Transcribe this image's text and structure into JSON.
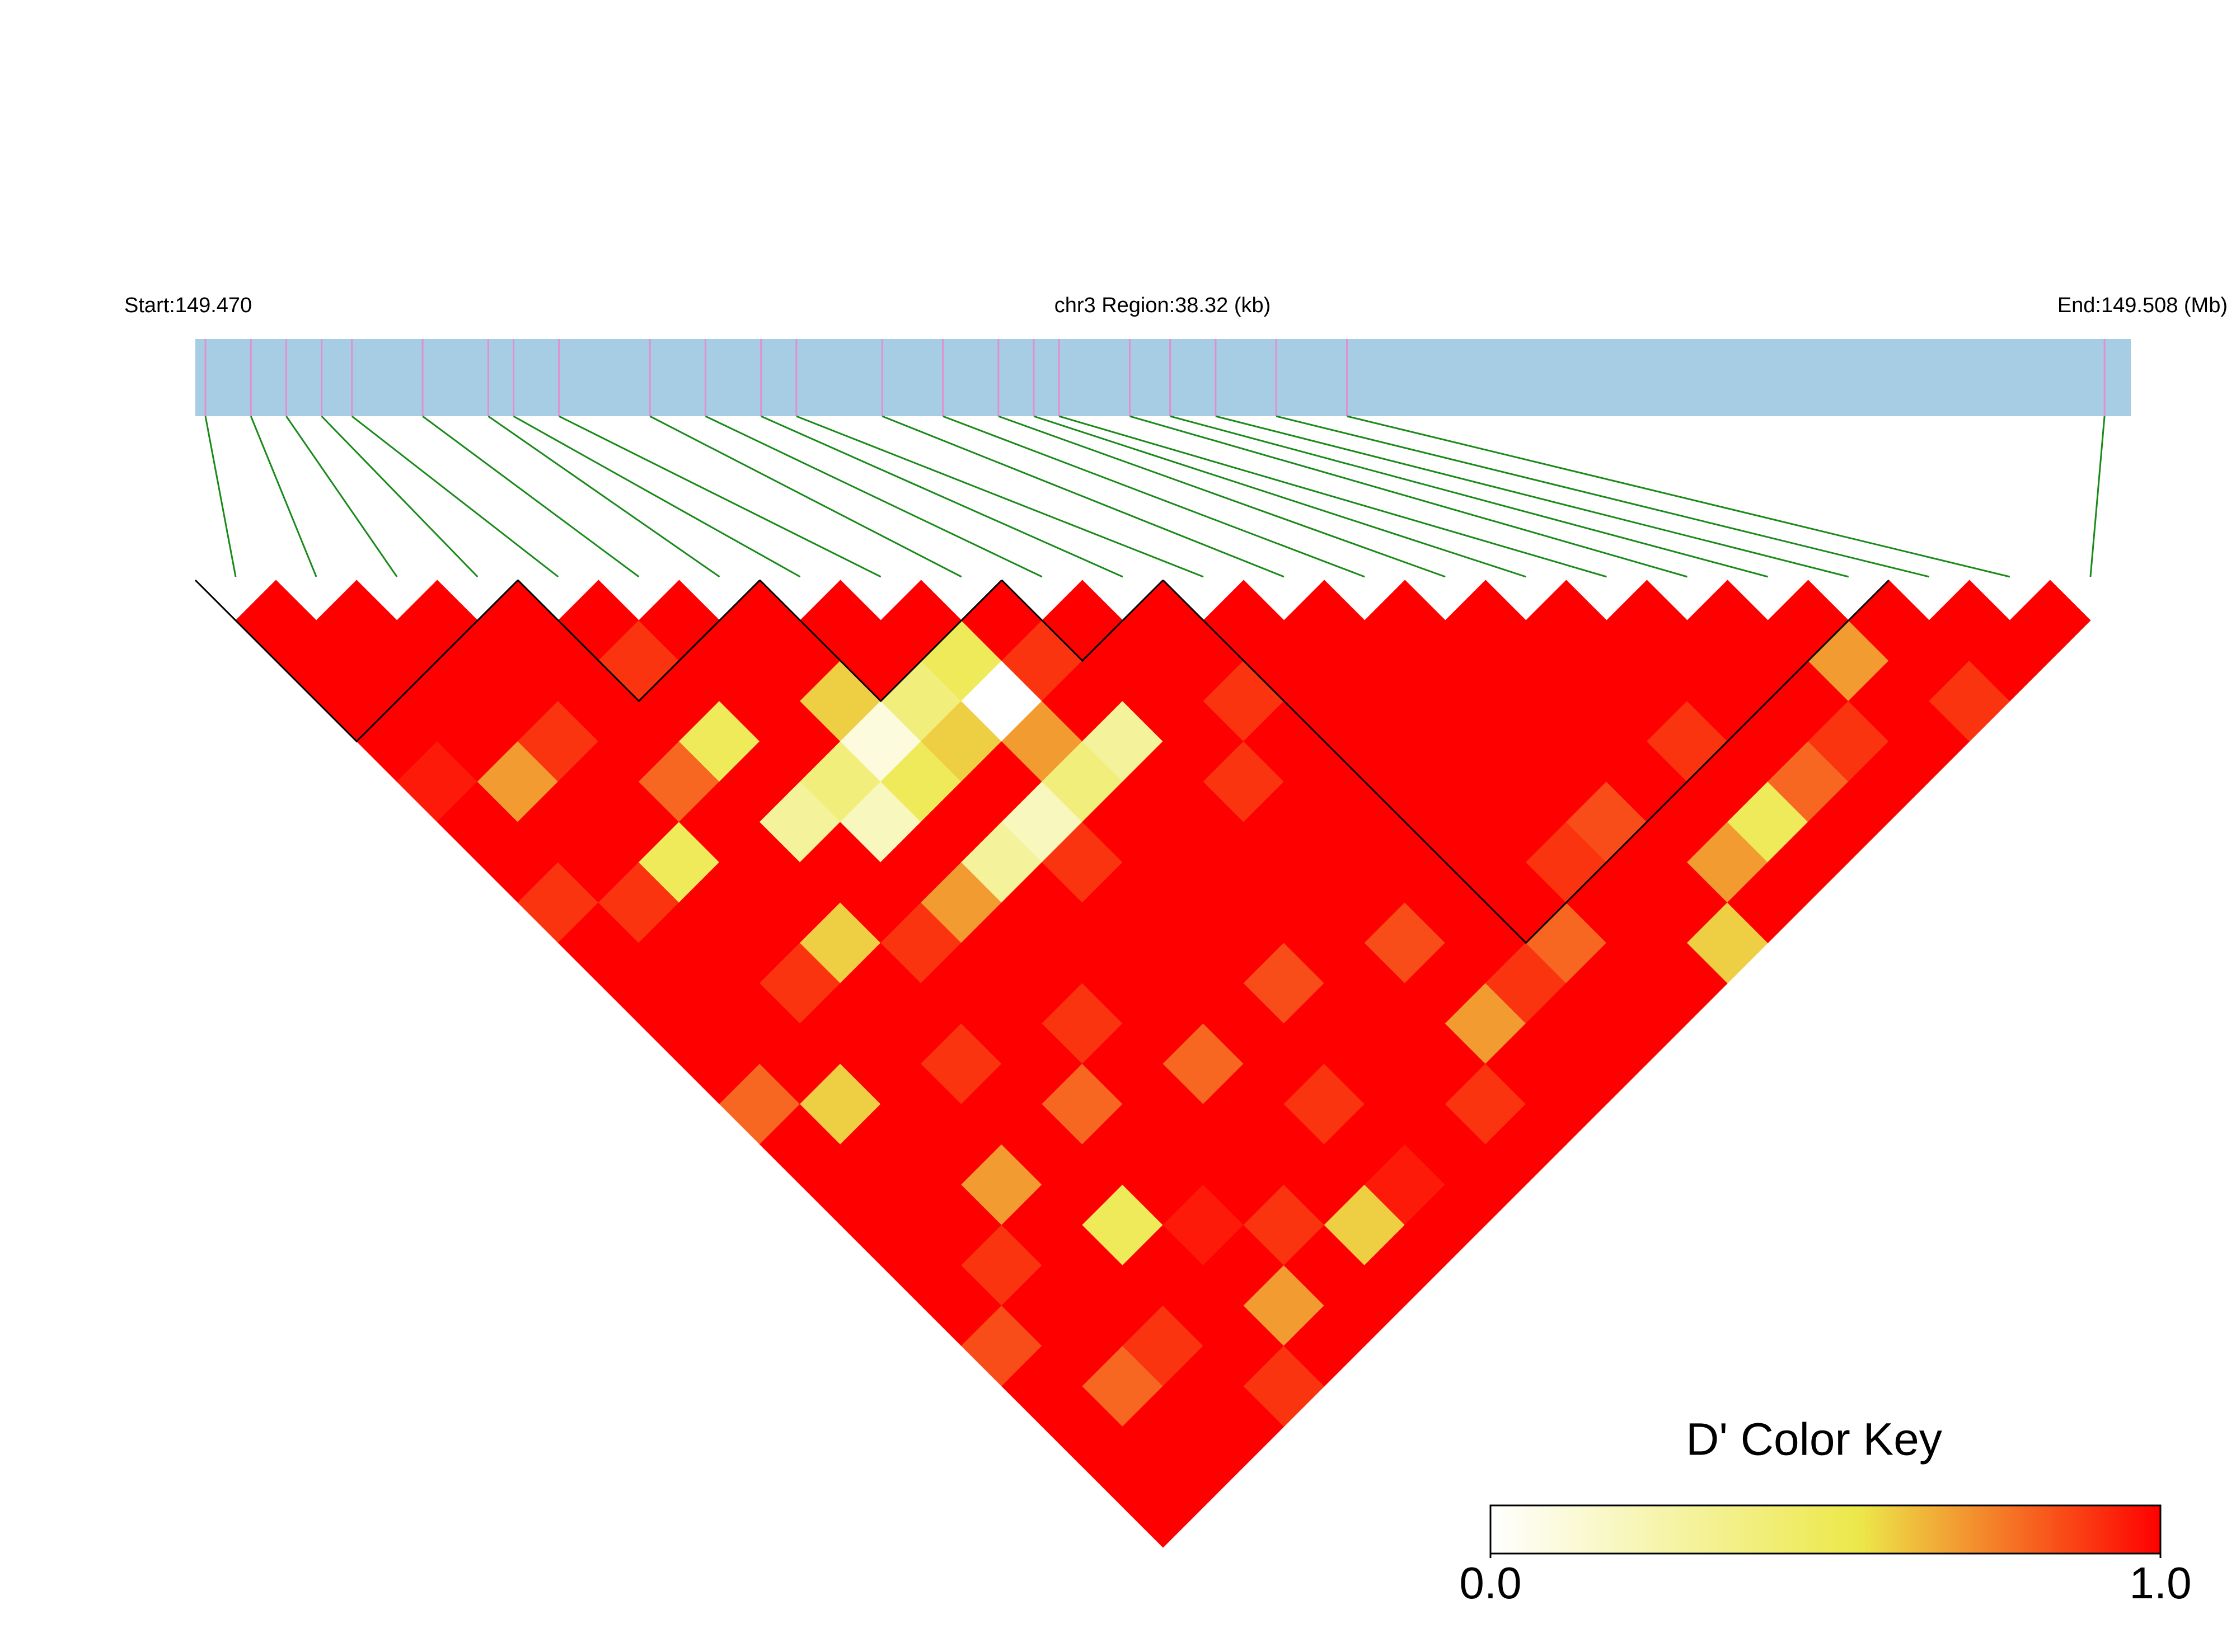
{
  "chart_data": {
    "type": "ld_heatmap",
    "start_label": "Start:149.470",
    "region_label": "chr3 Region:38.32 (kb)",
    "end_label": "End:149.508 (Mb)",
    "xlim": [
      149.47,
      149.50832
    ],
    "positions": [
      149.4702,
      149.4711,
      149.4718,
      149.4725,
      149.4731,
      149.4745,
      149.4758,
      149.4763,
      149.4772,
      149.479,
      149.4801,
      149.4812,
      149.4819,
      149.4836,
      149.4848,
      149.4859,
      149.4866,
      149.4871,
      149.4885,
      149.4893,
      149.4902,
      149.4914,
      149.4928,
      149.5078
    ],
    "ld_matrix": [
      [
        1,
        1,
        1,
        1,
        0.95,
        1,
        1,
        0.9,
        1,
        1,
        1,
        1,
        0.8,
        1,
        1,
        1,
        1,
        1,
        0.85,
        1,
        1,
        1,
        1
      ],
      [
        1,
        1,
        1,
        1,
        0.7,
        1,
        1,
        0.9,
        1,
        1,
        1,
        1,
        0.6,
        1,
        1,
        1,
        0.9,
        1,
        1,
        0.8,
        1,
        1
      ],
      [
        1,
        1,
        1,
        0.9,
        1,
        1,
        0.5,
        1,
        1,
        0.9,
        1,
        1,
        1,
        1,
        0.7,
        1,
        1,
        1,
        0.9,
        1,
        1
      ],
      [
        1,
        1,
        1,
        1,
        0.8,
        1,
        1,
        1,
        0.6,
        1,
        1,
        0.9,
        1,
        1,
        1,
        0.5,
        1,
        1,
        1,
        0.9
      ],
      [
        1,
        0.9,
        1,
        0.5,
        1,
        0.3,
        1,
        1,
        0.9,
        1,
        1,
        1,
        0.8,
        1,
        1,
        0.95,
        1,
        0.7,
        1
      ],
      [
        1,
        1,
        1,
        1,
        0.4,
        0.2,
        1,
        0.7,
        1,
        1,
        0.9,
        1,
        1,
        1,
        1,
        0.9,
        1,
        1
      ],
      [
        1,
        1,
        0.6,
        0.1,
        0.5,
        1,
        0.3,
        1,
        1,
        1,
        1,
        0.8,
        1,
        1,
        1,
        0.6,
        1
      ],
      [
        1,
        1,
        0.4,
        0.6,
        1,
        0.2,
        0.9,
        1,
        1,
        1,
        1,
        1,
        0.9,
        1,
        0.95,
        1
      ],
      [
        1,
        0.5,
        0,
        0.7,
        0.4,
        1,
        1,
        1,
        1,
        0.85,
        1,
        1,
        1,
        1,
        1
      ],
      [
        1,
        0.9,
        1,
        0.3,
        1,
        1,
        1,
        1,
        1,
        1,
        1,
        1,
        0.9,
        1
      ],
      [
        1,
        1,
        1,
        1,
        0.9,
        1,
        1,
        1,
        0.85,
        1,
        0.7,
        1,
        1
      ],
      [
        1,
        1,
        0.9,
        1,
        1,
        1,
        1,
        1,
        1,
        0.9,
        1,
        1
      ],
      [
        1,
        1,
        1,
        1,
        1,
        1,
        1,
        1,
        0.8,
        1,
        1
      ],
      [
        1,
        1,
        1,
        1,
        1,
        1,
        0.9,
        1,
        1,
        1
      ],
      [
        1,
        1,
        1,
        1,
        1,
        0.85,
        1,
        1,
        0.6
      ],
      [
        1,
        1,
        1,
        1,
        1,
        1,
        0.7,
        1
      ],
      [
        1,
        1,
        1,
        0.9,
        1,
        0.5,
        1
      ],
      [
        1,
        1,
        1,
        1,
        0.8,
        1
      ],
      [
        1,
        1,
        1,
        0.9,
        1
      ],
      [
        1,
        0.7,
        1,
        1
      ],
      [
        1,
        1,
        0.9
      ],
      [
        1,
        1
      ],
      [
        1
      ]
    ],
    "blocks": [
      [
        0,
        3
      ],
      [
        4,
        6
      ],
      [
        7,
        9
      ],
      [
        10,
        11
      ],
      [
        12,
        20
      ]
    ],
    "colorbar_title": "D' Color Key",
    "clim": [
      0,
      1
    ],
    "colorbar_ticks": [
      {
        "value": 0,
        "label": "0.0"
      },
      {
        "value": 1,
        "label": "1.0"
      }
    ],
    "color_stops": [
      0,
      0.55,
      1
    ],
    "colors": [
      "#ffffff",
      "#ece84a",
      "#ff0000"
    ],
    "bar_color": "#a6cde3",
    "snp_line_color": "#e38fcf",
    "connector_color": "#1a8a1a"
  }
}
